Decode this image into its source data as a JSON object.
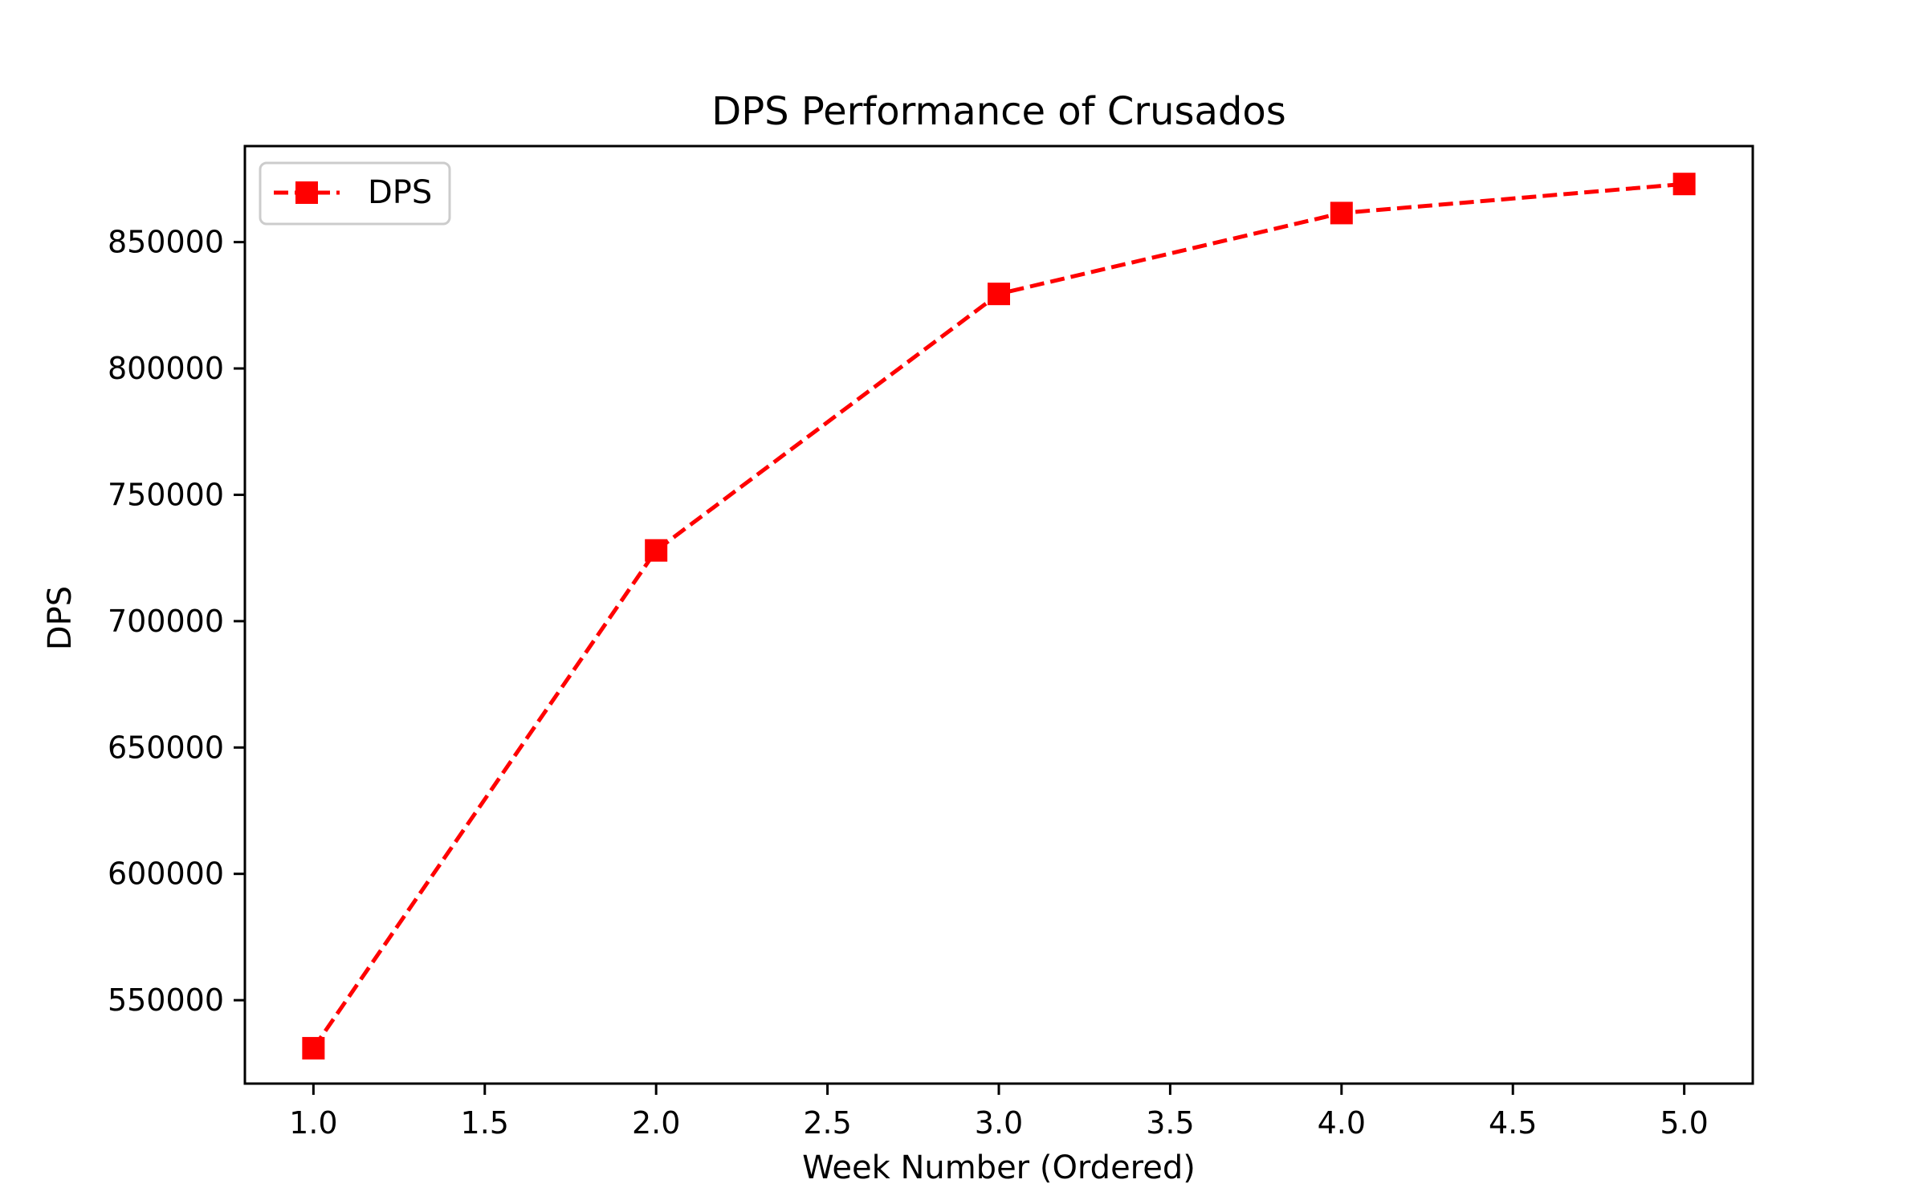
{
  "chart_data": {
    "type": "line",
    "title": "DPS Performance of Crusados",
    "xlabel": "Week Number (Ordered)",
    "ylabel": "DPS",
    "x": [
      1.0,
      2.0,
      3.0,
      4.0,
      5.0
    ],
    "series": [
      {
        "name": "DPS",
        "values": [
          531000,
          728000,
          829500,
          861500,
          873000
        ],
        "color": "#ff0000",
        "line_style": "dashed",
        "marker": "square"
      }
    ],
    "xlim": [
      0.8,
      5.2
    ],
    "ylim": [
      517000,
      888000
    ],
    "xticks": [
      1.0,
      1.5,
      2.0,
      2.5,
      3.0,
      3.5,
      4.0,
      4.5,
      5.0
    ],
    "xtick_labels": [
      "1.0",
      "1.5",
      "2.0",
      "2.5",
      "3.0",
      "3.5",
      "4.0",
      "4.5",
      "5.0"
    ],
    "yticks": [
      550000,
      600000,
      650000,
      700000,
      750000,
      800000,
      850000
    ],
    "ytick_labels": [
      "550000",
      "600000",
      "650000",
      "700000",
      "750000",
      "800000",
      "850000"
    ],
    "grid": false,
    "legend_position": "top-left"
  }
}
